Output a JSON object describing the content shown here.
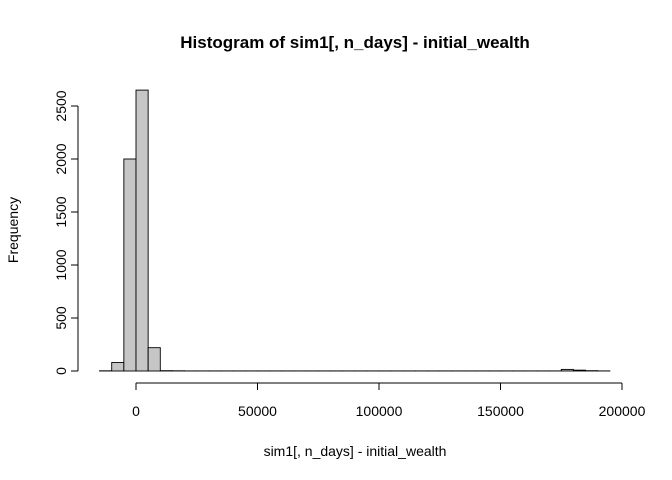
{
  "chart_data": {
    "type": "bar",
    "title": "Histogram of sim1[, n_days] - initial_wealth",
    "xlabel": "sim1[, n_days] - initial_wealth",
    "ylabel": "Frequency",
    "bin_width": 5000,
    "bins": [
      {
        "x0": -15000,
        "x1": -10000,
        "count": 2
      },
      {
        "x0": -10000,
        "x1": -5000,
        "count": 80
      },
      {
        "x0": -5000,
        "x1": 0,
        "count": 2000
      },
      {
        "x0": 0,
        "x1": 5000,
        "count": 2650
      },
      {
        "x0": 5000,
        "x1": 10000,
        "count": 220
      },
      {
        "x0": 10000,
        "x1": 15000,
        "count": 3
      },
      {
        "x0": 15000,
        "x1": 20000,
        "count": 2
      },
      {
        "x0": 20000,
        "x1": 25000,
        "count": 1
      },
      {
        "x0": 25000,
        "x1": 30000,
        "count": 1
      },
      {
        "x0": 30000,
        "x1": 35000,
        "count": 1
      },
      {
        "x0": 35000,
        "x1": 40000,
        "count": 1
      },
      {
        "x0": 40000,
        "x1": 45000,
        "count": 1
      },
      {
        "x0": 45000,
        "x1": 50000,
        "count": 1
      },
      {
        "x0": 50000,
        "x1": 55000,
        "count": 1
      },
      {
        "x0": 55000,
        "x1": 60000,
        "count": 1
      },
      {
        "x0": 60000,
        "x1": 65000,
        "count": 1
      },
      {
        "x0": 65000,
        "x1": 70000,
        "count": 1
      },
      {
        "x0": 70000,
        "x1": 75000,
        "count": 1
      },
      {
        "x0": 75000,
        "x1": 80000,
        "count": 1
      },
      {
        "x0": 80000,
        "x1": 85000,
        "count": 1
      },
      {
        "x0": 85000,
        "x1": 90000,
        "count": 1
      },
      {
        "x0": 90000,
        "x1": 95000,
        "count": 1
      },
      {
        "x0": 95000,
        "x1": 100000,
        "count": 1
      },
      {
        "x0": 100000,
        "x1": 105000,
        "count": 1
      },
      {
        "x0": 105000,
        "x1": 110000,
        "count": 1
      },
      {
        "x0": 110000,
        "x1": 115000,
        "count": 1
      },
      {
        "x0": 115000,
        "x1": 120000,
        "count": 1
      },
      {
        "x0": 120000,
        "x1": 125000,
        "count": 1
      },
      {
        "x0": 125000,
        "x1": 130000,
        "count": 1
      },
      {
        "x0": 130000,
        "x1": 135000,
        "count": 1
      },
      {
        "x0": 135000,
        "x1": 140000,
        "count": 1
      },
      {
        "x0": 140000,
        "x1": 145000,
        "count": 1
      },
      {
        "x0": 145000,
        "x1": 150000,
        "count": 1
      },
      {
        "x0": 150000,
        "x1": 155000,
        "count": 1
      },
      {
        "x0": 155000,
        "x1": 160000,
        "count": 1
      },
      {
        "x0": 160000,
        "x1": 165000,
        "count": 1
      },
      {
        "x0": 165000,
        "x1": 170000,
        "count": 1
      },
      {
        "x0": 170000,
        "x1": 175000,
        "count": 1
      },
      {
        "x0": 175000,
        "x1": 180000,
        "count": 15
      },
      {
        "x0": 180000,
        "x1": 185000,
        "count": 8
      },
      {
        "x0": 185000,
        "x1": 190000,
        "count": 3
      },
      {
        "x0": 190000,
        "x1": 195000,
        "count": 1
      }
    ],
    "xlim": [
      -15000,
      195000
    ],
    "ylim": [
      0,
      2650
    ],
    "x_ticks": [
      0,
      50000,
      100000,
      150000,
      200000
    ],
    "x_tick_labels": [
      "0",
      "50000",
      "100000",
      "150000",
      "200000"
    ],
    "y_ticks": [
      0,
      500,
      1000,
      1500,
      2000,
      2500
    ],
    "y_tick_labels": [
      "0",
      "500",
      "1000",
      "1500",
      "2000",
      "2500"
    ],
    "grid": false,
    "colors": {
      "bar_fill": "#c6c6c6",
      "bar_stroke": "#000000"
    }
  }
}
